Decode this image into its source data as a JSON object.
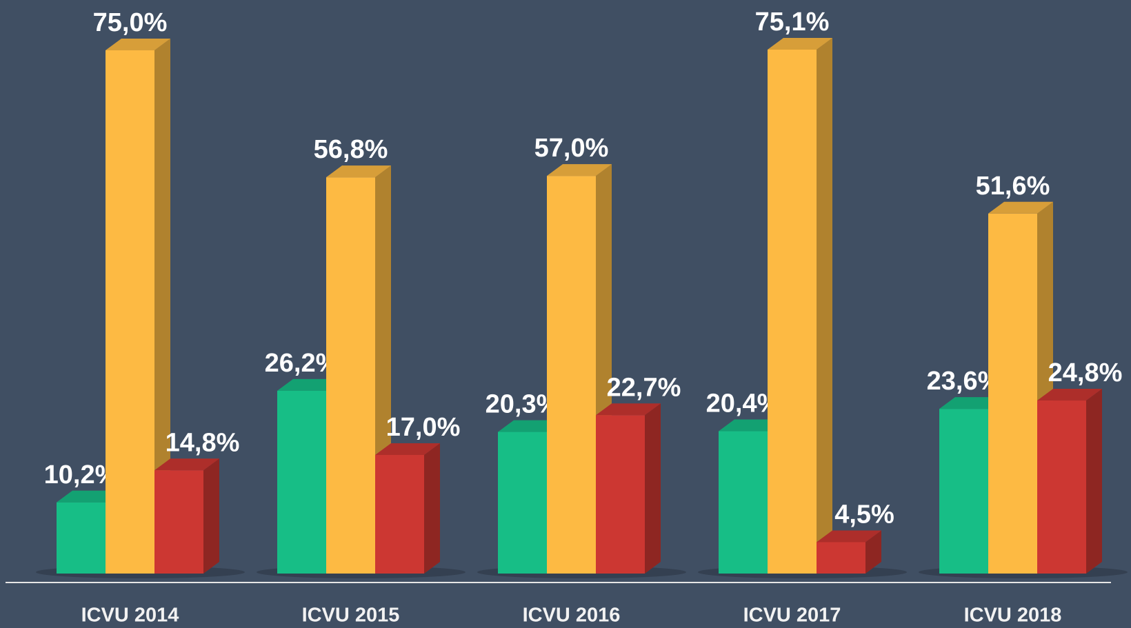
{
  "chart_data": {
    "type": "bar3d",
    "categories": [
      "ICVU 2014",
      "ICVU 2015",
      "ICVU 2016",
      "ICVU 2017",
      "ICVU 2018"
    ],
    "series": [
      {
        "color": "#17be86",
        "values": [
          10.2,
          26.2,
          20.3,
          20.4,
          23.6
        ],
        "value_labels": [
          "10,2%",
          "26,2%",
          "20,3%",
          "20,4%",
          "23,6%"
        ]
      },
      {
        "color": "#fdba43",
        "values": [
          75.0,
          56.8,
          57.0,
          75.1,
          51.6
        ],
        "value_labels": [
          "75,0%",
          "56,8%",
          "57,0%",
          "75,1%",
          "51,6%"
        ]
      },
      {
        "color": "#cc3732",
        "values": [
          14.8,
          17.0,
          22.7,
          4.5,
          24.8
        ],
        "value_labels": [
          "14,8%",
          "17,0%",
          "22,7%",
          "4,5%",
          "24,8%"
        ]
      }
    ]
  }
}
